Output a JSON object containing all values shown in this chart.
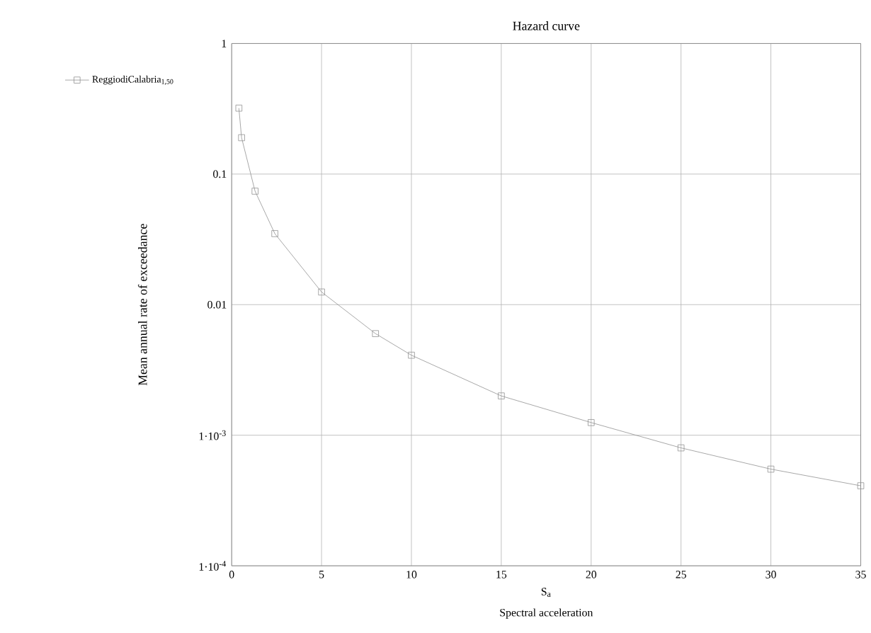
{
  "chart_data": {
    "type": "line",
    "title": "Hazard curve",
    "xlabel": "S$_{a}$",
    "ylabel": "Mean annual rate of exceedance",
    "annotations": [
      "Spectral acceleration"
    ],
    "x": [
      0.4,
      0.55,
      1.3,
      2.4,
      5,
      8,
      10,
      15,
      20,
      25,
      30,
      35
    ],
    "series": [
      {
        "name": "ReggiodiCalabria$_{1,50}$",
        "color": "#909090",
        "values": [
          0.32,
          0.19,
          0.074,
          0.035,
          0.0125,
          0.006,
          0.0041,
          0.002,
          0.00125,
          0.0008,
          0.00055,
          0.00041
        ]
      }
    ],
    "xlim": [
      0,
      35
    ],
    "xticks": [
      0,
      5,
      10,
      15,
      20,
      25,
      30,
      35
    ],
    "ylim": [
      0.0001,
      1
    ],
    "yticks": [
      1,
      0.1,
      0.01,
      {
        "value": 0.001,
        "label": "1·10$^{-3}$"
      },
      {
        "value": 0.0001,
        "label": "1·10$^{-4}$"
      }
    ],
    "log": "y",
    "grid": true,
    "marker": "square",
    "line_style": "solid",
    "legend": "left"
  }
}
